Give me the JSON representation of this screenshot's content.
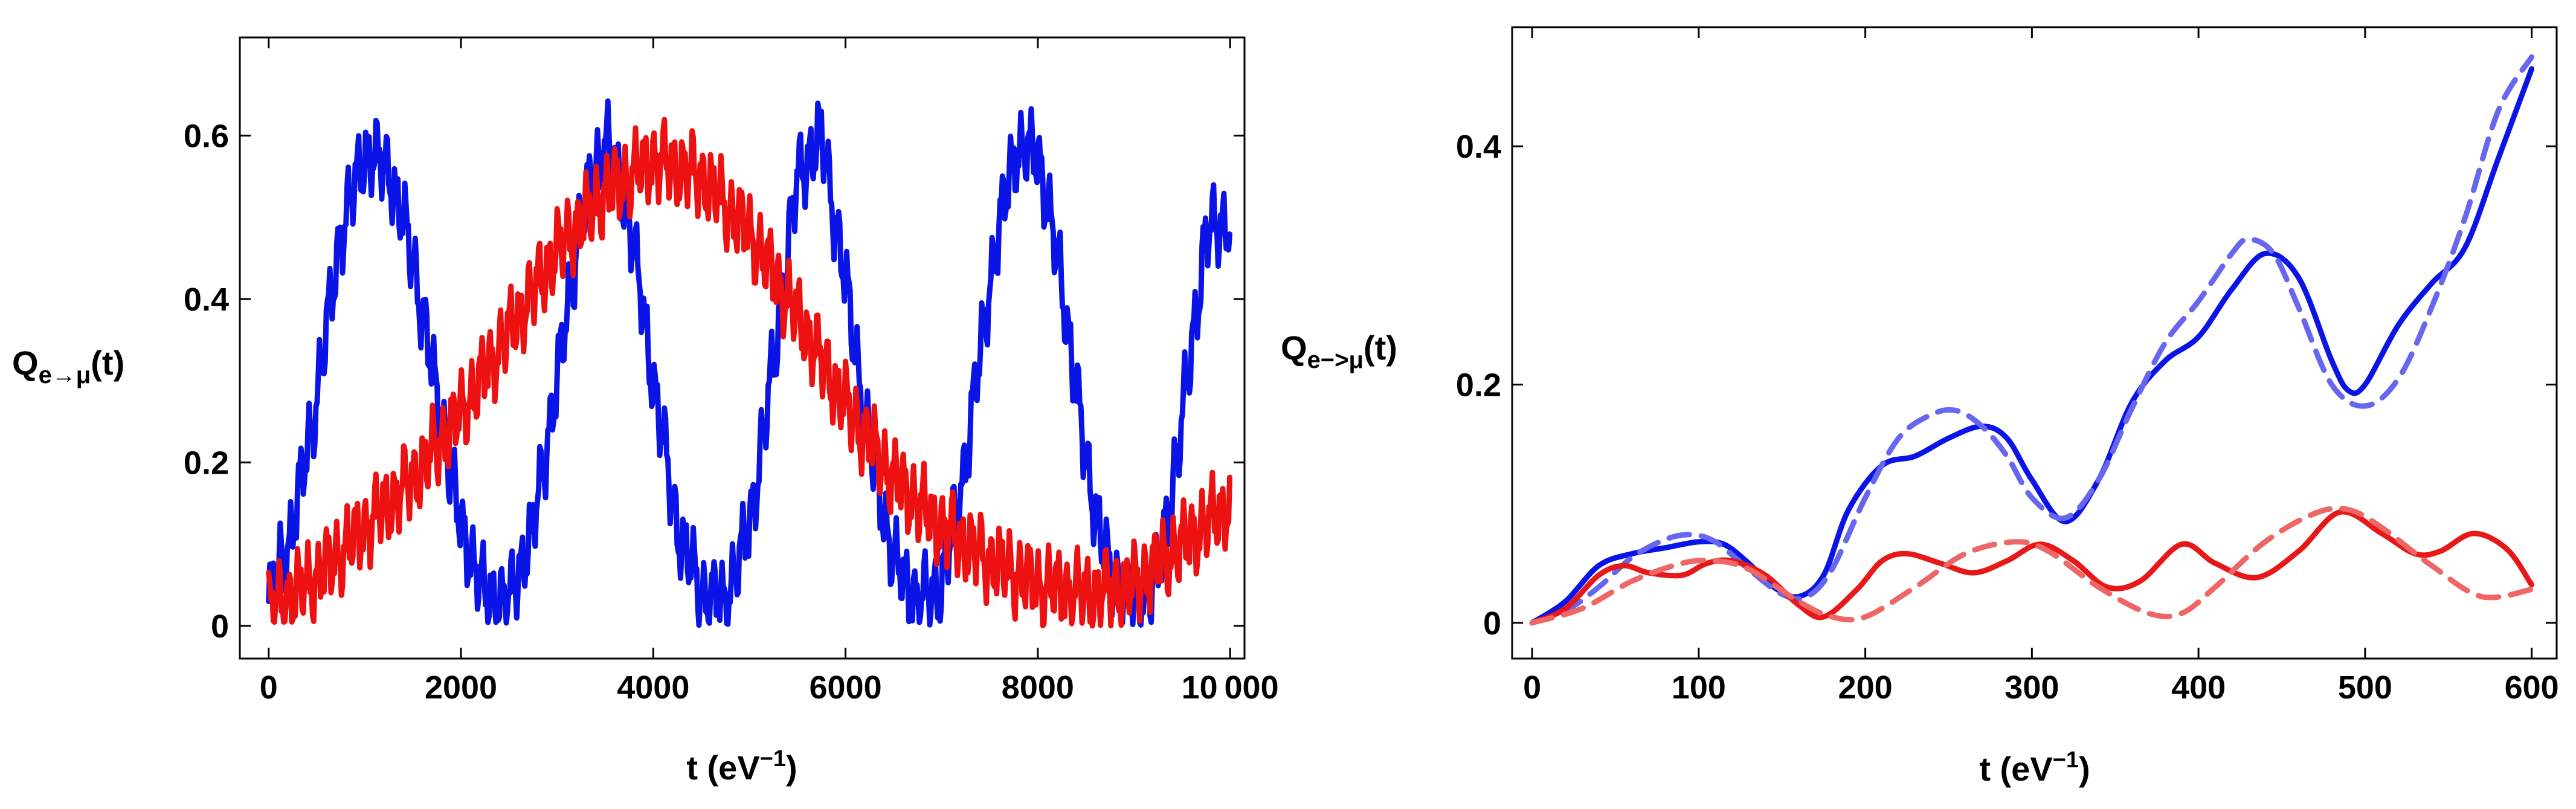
{
  "chart_data": [
    {
      "type": "line",
      "panel": "left",
      "xlabel": "t (eV⁻¹)",
      "ylabel": "Qe→μ(t)",
      "ylabel_parts": {
        "main": "Q",
        "sub": "e→μ",
        "tail": "(t)"
      },
      "xlabel_parts": {
        "main": "t (eV",
        "sup": "−1",
        "tail": ")"
      },
      "xlim": [
        -300,
        10150
      ],
      "ylim": [
        -0.04,
        0.72
      ],
      "xticks": [
        0,
        2000,
        4000,
        6000,
        8000,
        10000
      ],
      "xtick_labels": [
        "0",
        "2000",
        "4000",
        "6000",
        "8000",
        "10 000"
      ],
      "yticks": [
        0,
        0.2,
        0.4,
        0.6
      ],
      "ytick_labels": [
        "0",
        "0.2",
        "0.4",
        "0.6"
      ],
      "series": [
        {
          "name": "blue",
          "color": "#0a14e6",
          "style": "solid",
          "x": [
            0,
            250,
            500,
            750,
            1000,
            1250,
            1500,
            1750,
            2000,
            2250,
            2500,
            2750,
            3000,
            3250,
            3500,
            3750,
            4000,
            4250,
            4500,
            4750,
            5000,
            5250,
            5500,
            5750,
            6000,
            6250,
            6500,
            6750,
            7000,
            7250,
            7500,
            7750,
            8000,
            8250,
            8500,
            8750,
            9000,
            9250,
            9500,
            9750,
            10000
          ],
          "y": [
            0.03,
            0.12,
            0.28,
            0.48,
            0.58,
            0.56,
            0.45,
            0.28,
            0.12,
            0.04,
            0.03,
            0.12,
            0.3,
            0.5,
            0.6,
            0.5,
            0.3,
            0.12,
            0.04,
            0.03,
            0.12,
            0.32,
            0.55,
            0.6,
            0.42,
            0.22,
            0.08,
            0.03,
            0.05,
            0.2,
            0.42,
            0.58,
            0.58,
            0.42,
            0.2,
            0.06,
            0.03,
            0.06,
            0.25,
            0.48,
            0.5
          ],
          "osc_amplitude": 0.06,
          "osc_period": 100
        },
        {
          "name": "red",
          "color": "#ee1111",
          "style": "solid",
          "x": [
            0,
            500,
            1000,
            1500,
            2000,
            2500,
            3000,
            3500,
            4000,
            4500,
            5000,
            5500,
            6000,
            6500,
            7000,
            7500,
            8000,
            8500,
            9000,
            9500,
            10000
          ],
          "y": [
            0.02,
            0.06,
            0.12,
            0.18,
            0.26,
            0.36,
            0.46,
            0.53,
            0.57,
            0.55,
            0.48,
            0.38,
            0.27,
            0.18,
            0.12,
            0.08,
            0.05,
            0.04,
            0.05,
            0.1,
            0.15
          ],
          "osc_amplitude": 0.06,
          "osc_period": 100
        }
      ]
    },
    {
      "type": "line",
      "panel": "right",
      "xlabel": "t (eV⁻¹)",
      "ylabel": "Qe->μ(t)",
      "ylabel_parts": {
        "main": "Q",
        "sub": "e−>μ",
        "tail": "(t)"
      },
      "xlabel_parts": {
        "main": "t (eV",
        "sup": "−1",
        "tail": ")"
      },
      "xlim": [
        -12,
        615
      ],
      "ylim": [
        -0.03,
        0.5
      ],
      "xticks": [
        0,
        100,
        200,
        300,
        400,
        500,
        600
      ],
      "xtick_labels": [
        "0",
        "100",
        "200",
        "300",
        "400",
        "500",
        "600"
      ],
      "yticks": [
        0,
        0.2,
        0.4
      ],
      "ytick_labels": [
        "0",
        "0.2",
        "0.4"
      ],
      "series": [
        {
          "name": "blue solid",
          "color": "#0a14e6",
          "style": "solid",
          "x": [
            0,
            20,
            40,
            60,
            80,
            100,
            115,
            130,
            145,
            160,
            175,
            190,
            210,
            230,
            250,
            270,
            285,
            300,
            320,
            340,
            360,
            380,
            400,
            420,
            440,
            460,
            480,
            490,
            500,
            520,
            540,
            560,
            580,
            600
          ],
          "y": [
            0,
            0.018,
            0.048,
            0.058,
            0.063,
            0.068,
            0.066,
            0.05,
            0.03,
            0.022,
            0.04,
            0.095,
            0.132,
            0.14,
            0.155,
            0.165,
            0.155,
            0.12,
            0.085,
            0.12,
            0.185,
            0.22,
            0.24,
            0.28,
            0.31,
            0.29,
            0.22,
            0.195,
            0.2,
            0.25,
            0.285,
            0.315,
            0.39,
            0.465
          ]
        },
        {
          "name": "blue dashed",
          "color": "#6666ee",
          "style": "dashed",
          "x": [
            0,
            20,
            40,
            60,
            80,
            95,
            110,
            130,
            150,
            165,
            180,
            200,
            220,
            240,
            255,
            270,
            285,
            300,
            320,
            340,
            360,
            380,
            400,
            420,
            430,
            445,
            460,
            480,
            500,
            520,
            540,
            560,
            580,
            600
          ],
          "y": [
            0,
            0.01,
            0.03,
            0.055,
            0.07,
            0.074,
            0.068,
            0.045,
            0.024,
            0.022,
            0.045,
            0.105,
            0.155,
            0.175,
            0.178,
            0.165,
            0.14,
            0.105,
            0.088,
            0.12,
            0.18,
            0.235,
            0.27,
            0.31,
            0.322,
            0.31,
            0.265,
            0.2,
            0.182,
            0.205,
            0.265,
            0.34,
            0.43,
            0.475
          ]
        },
        {
          "name": "red solid",
          "color": "#e81818",
          "style": "solid",
          "x": [
            0,
            20,
            40,
            55,
            70,
            90,
            105,
            120,
            140,
            160,
            175,
            195,
            210,
            225,
            245,
            265,
            285,
            305,
            325,
            345,
            365,
            390,
            410,
            435,
            460,
            485,
            510,
            530,
            545,
            565,
            585,
            600
          ],
          "y": [
            0,
            0.012,
            0.04,
            0.048,
            0.042,
            0.04,
            0.05,
            0.052,
            0.04,
            0.015,
            0.005,
            0.028,
            0.052,
            0.058,
            0.05,
            0.042,
            0.052,
            0.066,
            0.052,
            0.03,
            0.035,
            0.066,
            0.05,
            0.038,
            0.06,
            0.093,
            0.075,
            0.058,
            0.06,
            0.075,
            0.062,
            0.032
          ]
        },
        {
          "name": "red dashed",
          "color": "#ee6666",
          "style": "dashed",
          "x": [
            0,
            30,
            60,
            90,
            110,
            130,
            160,
            180,
            200,
            230,
            260,
            290,
            310,
            340,
            370,
            390,
            410,
            440,
            470,
            490,
            510,
            540,
            570,
            600
          ],
          "y": [
            0,
            0.012,
            0.035,
            0.05,
            0.052,
            0.045,
            0.018,
            0.005,
            0.005,
            0.03,
            0.058,
            0.068,
            0.06,
            0.03,
            0.008,
            0.008,
            0.03,
            0.068,
            0.092,
            0.095,
            0.08,
            0.048,
            0.022,
            0.028
          ]
        }
      ]
    }
  ]
}
